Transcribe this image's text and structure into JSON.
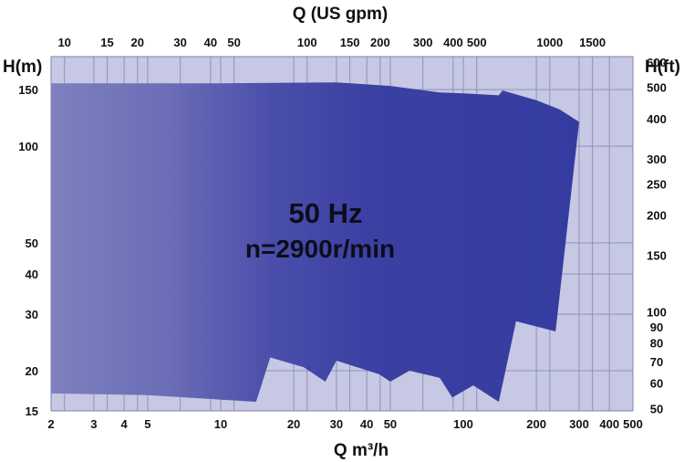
{
  "chart_data": {
    "type": "area",
    "title": "",
    "x_top_label": "Q (US gpm)",
    "x_bottom_label": "Q m³/h",
    "y_left_label": "H(m)",
    "y_right_label": "H(ft)",
    "annotations": [
      "50 Hz",
      "n=2900r/min"
    ],
    "x_scale": "log",
    "y_scale": "log",
    "xlim": [
      2,
      500
    ],
    "ylim": [
      15,
      190
    ],
    "grid": true,
    "x_bottom_ticks": [
      2,
      3,
      4,
      5,
      10,
      20,
      30,
      40,
      50,
      100,
      200,
      300,
      400,
      500
    ],
    "x_bottom_tick_labels": [
      "2",
      "3",
      "4",
      "5",
      "10",
      "20",
      "30",
      "40",
      "50",
      "100",
      "200",
      "300",
      "400",
      "500"
    ],
    "x_top_ticks": [
      10,
      15,
      20,
      30,
      40,
      50,
      100,
      150,
      200,
      300,
      400,
      500,
      1000,
      1500
    ],
    "x_top_tick_labels": [
      "10",
      "15",
      "20",
      "30",
      "40",
      "50",
      "100",
      "150",
      "200",
      "300",
      "400",
      "500",
      "1000",
      "1500"
    ],
    "y_left_ticks": [
      15,
      20,
      30,
      40,
      50,
      100,
      150
    ],
    "y_left_tick_labels": [
      "15",
      "20",
      "30",
      "40",
      "50",
      "100",
      "150"
    ],
    "y_right_ticks": [
      50,
      60,
      70,
      80,
      90,
      100,
      150,
      200,
      250,
      300,
      400,
      500,
      600
    ],
    "y_right_tick_labels": [
      "50",
      "60",
      "70",
      "80",
      "90",
      "100",
      "150",
      "200",
      "250",
      "300",
      "400",
      "500",
      "600"
    ],
    "series": [
      {
        "values": [
          [
            2,
            157
          ],
          [
            10,
            157
          ],
          [
            30,
            158
          ],
          [
            50,
            154
          ],
          [
            80,
            147
          ],
          [
            100,
            146
          ],
          [
            140,
            144
          ],
          [
            145,
            149
          ],
          [
            200,
            139
          ],
          [
            250,
            130
          ],
          [
            300,
            119
          ],
          [
            240,
            26.5
          ],
          [
            165,
            28.5
          ],
          [
            140,
            16
          ],
          [
            110,
            18
          ],
          [
            90,
            16.5
          ],
          [
            80,
            19
          ],
          [
            60,
            20
          ],
          [
            50,
            18.5
          ],
          [
            45,
            19.5
          ],
          [
            30,
            21.5
          ],
          [
            27,
            18.5
          ],
          [
            22,
            20.5
          ],
          [
            16,
            22
          ],
          [
            14,
            16
          ],
          [
            5,
            16.8
          ],
          [
            2,
            17
          ]
        ]
      }
    ]
  }
}
